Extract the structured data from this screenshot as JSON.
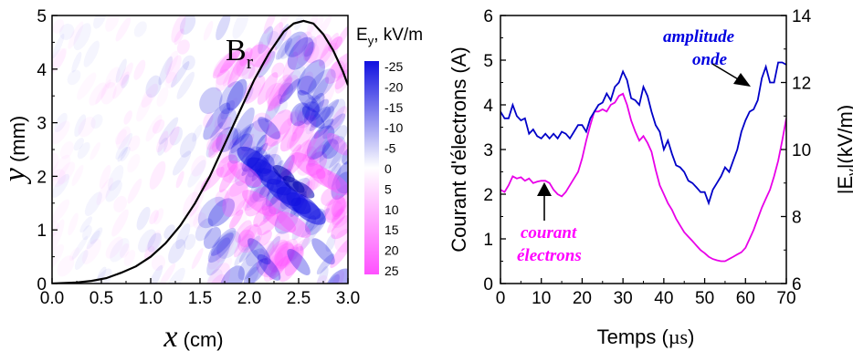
{
  "chart_data": [
    {
      "type": "heatmap",
      "title": "",
      "xlabel": "x (cm)",
      "ylabel": "y (mm)",
      "xlim": [
        0,
        3
      ],
      "ylim": [
        0,
        5
      ],
      "x_ticks": [
        "0.0",
        "0.5",
        "1.0",
        "1.5",
        "2.0",
        "2.5",
        "3.0"
      ],
      "y_ticks": [
        "0",
        "1",
        "2",
        "3",
        "4",
        "5"
      ],
      "colorbar": {
        "title": "Ey, kV/m",
        "title_main": "E",
        "title_sub": "y",
        "title_rest": ", kV/m",
        "ticks": [
          "-25",
          "-20",
          "-15",
          "-10",
          "-5",
          "0",
          "5",
          "10",
          "15",
          "20",
          "25"
        ],
        "range": [
          -25,
          25
        ],
        "negative_color": "#1010e0",
        "positive_color": "#ff50ff"
      },
      "curve": {
        "name": "Br",
        "label_main": "B",
        "label_sub": "r",
        "color": "#000000",
        "x": [
          0.0,
          0.25,
          0.4,
          0.55,
          0.7,
          0.85,
          1.0,
          1.15,
          1.3,
          1.45,
          1.6,
          1.75,
          1.9,
          2.05,
          2.2,
          2.35,
          2.45,
          2.55,
          2.65,
          2.75,
          2.85,
          2.95,
          3.0
        ],
        "y": [
          0.0,
          0.02,
          0.05,
          0.1,
          0.2,
          0.32,
          0.5,
          0.75,
          1.08,
          1.5,
          2.0,
          2.6,
          3.2,
          3.8,
          4.3,
          4.7,
          4.85,
          4.9,
          4.85,
          4.65,
          4.35,
          3.95,
          3.7
        ]
      }
    },
    {
      "type": "line",
      "title": "",
      "xlabel": "Temps (µs)",
      "xlabel_main": "Temps (",
      "xlabel_unit": "µs",
      "xlabel_close": ")",
      "ylabel": "Courant d'électrons (A)",
      "y2label": "|Ev|(kV/m)",
      "y2label_main": "|E",
      "y2label_sub": "v",
      "y2label_rest": "|(kV/m)",
      "xlim": [
        0,
        70
      ],
      "ylim": [
        0,
        6
      ],
      "y2lim": [
        6,
        14
      ],
      "x_ticks": [
        "0",
        "10",
        "20",
        "30",
        "40",
        "50",
        "60",
        "70"
      ],
      "y_ticks": [
        "0",
        "1",
        "2",
        "3",
        "4",
        "5",
        "6"
      ],
      "y2_ticks": [
        "6",
        "8",
        "10",
        "12",
        "14"
      ],
      "series": [
        {
          "name": "amplitude onde",
          "label_line1": "amplitude",
          "label_line2": "onde",
          "axis": "right",
          "color": "#0000c8",
          "label_color": "#0000e0",
          "x": [
            0,
            1,
            2,
            3,
            4,
            5,
            6,
            7,
            8,
            9,
            10,
            11,
            12,
            13,
            14,
            15,
            16,
            17,
            18,
            19,
            20,
            21,
            22,
            23,
            24,
            25,
            26,
            27,
            28,
            29,
            30,
            31,
            32,
            33,
            34,
            35,
            36,
            37,
            38,
            39,
            40,
            41,
            42,
            43,
            44,
            45,
            46,
            47,
            48,
            49,
            50,
            51,
            52,
            53,
            54,
            55,
            56,
            57,
            58,
            59,
            60,
            61,
            62,
            63,
            64,
            65,
            66,
            67,
            68,
            69,
            70
          ],
          "y": [
            11.13,
            10.93,
            10.93,
            11.33,
            11.0,
            10.87,
            10.93,
            10.47,
            10.6,
            10.4,
            10.33,
            10.47,
            10.33,
            10.47,
            10.33,
            10.53,
            10.47,
            10.33,
            10.53,
            10.73,
            10.73,
            10.53,
            10.93,
            11.13,
            11.33,
            11.4,
            11.67,
            11.47,
            11.87,
            12.0,
            12.33,
            12.07,
            11.53,
            11.47,
            11.33,
            11.87,
            11.6,
            11.13,
            10.73,
            10.53,
            10.0,
            10.27,
            9.87,
            9.53,
            9.47,
            9.33,
            9.07,
            9.0,
            8.87,
            8.73,
            8.73,
            8.4,
            8.8,
            9.0,
            9.2,
            9.47,
            9.33,
            9.67,
            10.0,
            10.53,
            10.87,
            11.13,
            11.2,
            11.47,
            12.13,
            12.47,
            12.0,
            12.0,
            12.6,
            12.6,
            12.53
          ]
        },
        {
          "name": "courant électrons",
          "label_line1": "courant",
          "label_line2": "électrons",
          "axis": "left",
          "color": "#e800e8",
          "label_color": "#ff00ff",
          "x": [
            0,
            1,
            2,
            3,
            4,
            5,
            6,
            7,
            8,
            9,
            10,
            11,
            12,
            13,
            14,
            15,
            16,
            17,
            18,
            19,
            20,
            21,
            22,
            23,
            24,
            25,
            26,
            27,
            28,
            29,
            30,
            31,
            32,
            33,
            34,
            35,
            36,
            37,
            38,
            39,
            40,
            41,
            42,
            43,
            44,
            45,
            46,
            47,
            48,
            49,
            50,
            51,
            52,
            53,
            54,
            55,
            56,
            57,
            58,
            59,
            60,
            61,
            62,
            63,
            64,
            65,
            66,
            67,
            68,
            69,
            70
          ],
          "y": [
            2.1,
            2.05,
            2.2,
            2.4,
            2.35,
            2.38,
            2.3,
            2.35,
            2.25,
            2.28,
            2.3,
            2.3,
            2.25,
            2.1,
            2.0,
            1.95,
            2.05,
            2.2,
            2.35,
            2.5,
            2.8,
            3.2,
            3.55,
            3.85,
            3.85,
            3.9,
            3.85,
            4.0,
            4.05,
            4.2,
            4.25,
            4.0,
            3.65,
            3.4,
            3.2,
            3.3,
            3.15,
            2.95,
            2.55,
            2.2,
            2.0,
            1.8,
            1.65,
            1.45,
            1.3,
            1.15,
            1.05,
            0.95,
            0.85,
            0.75,
            0.68,
            0.6,
            0.55,
            0.52,
            0.5,
            0.5,
            0.55,
            0.6,
            0.65,
            0.7,
            0.8,
            1.0,
            1.2,
            1.45,
            1.7,
            1.9,
            2.1,
            2.4,
            2.75,
            3.2,
            3.7
          ]
        }
      ]
    }
  ]
}
